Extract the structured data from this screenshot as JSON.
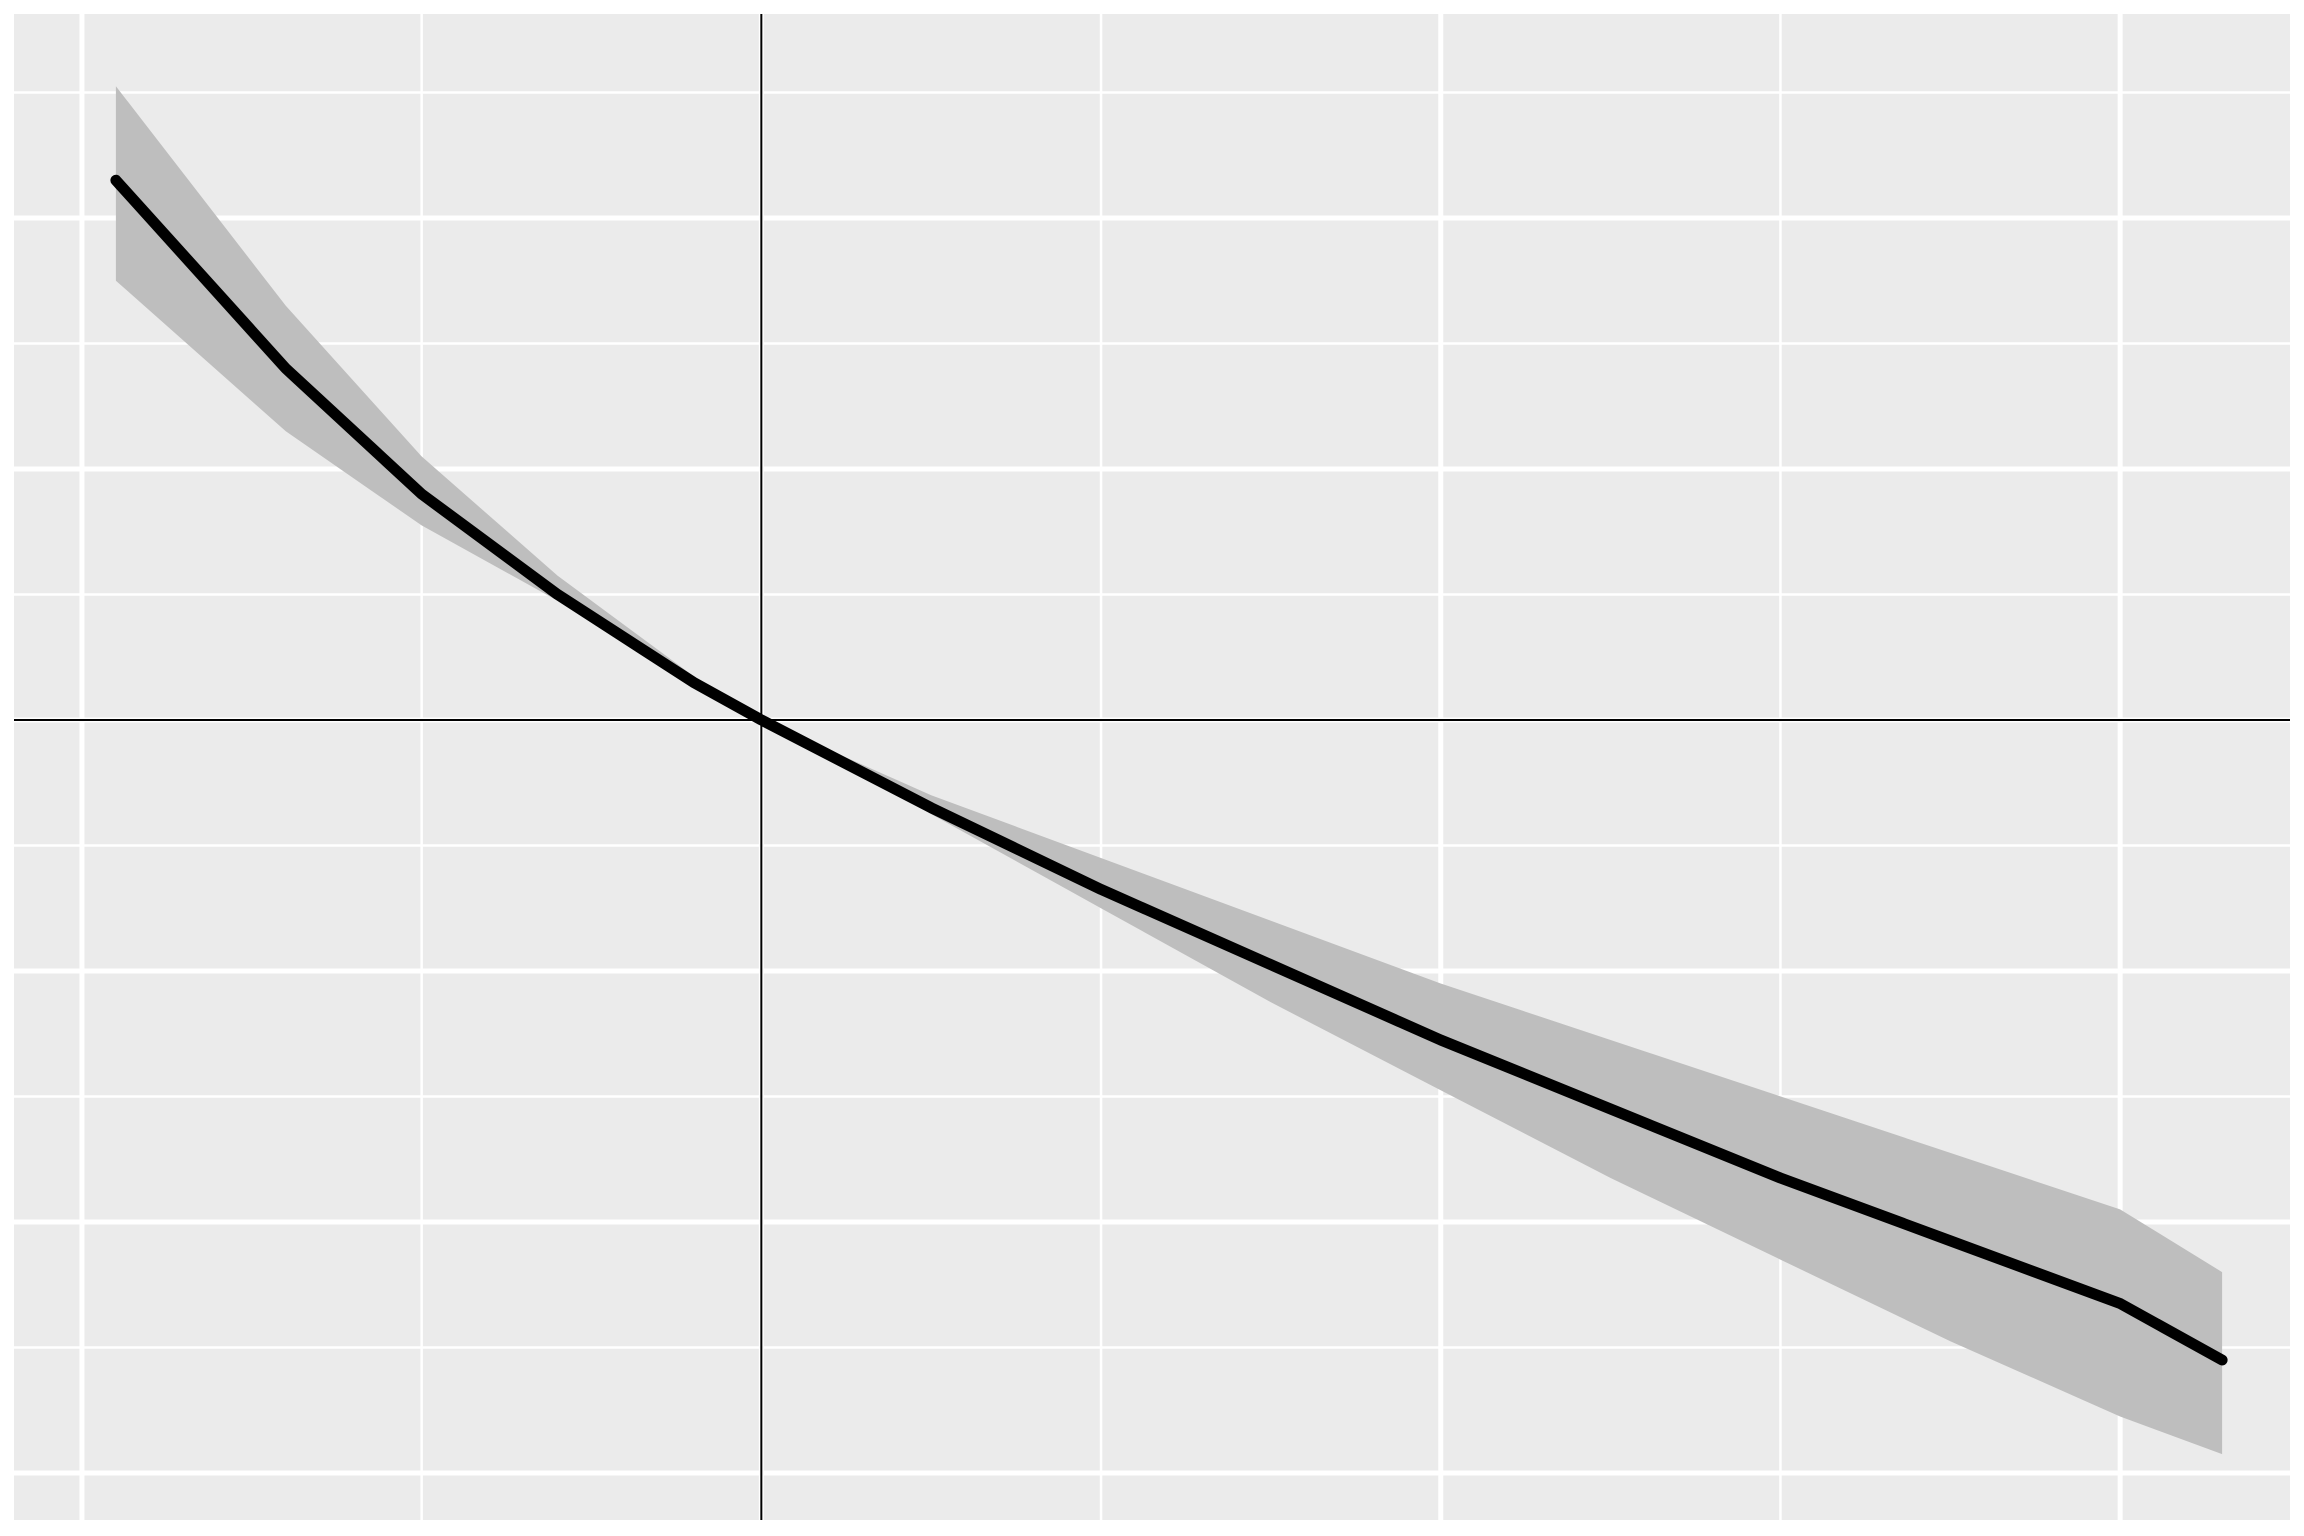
{
  "chart_data": {
    "type": "line",
    "title": "",
    "xlabel": "",
    "ylabel": "",
    "xlim": [
      -1.1,
      2.25
    ],
    "ylim": [
      -1.275,
      1.125
    ],
    "x_major_breaks": [
      -1,
      0,
      1,
      2
    ],
    "x_minor_breaks": [
      -0.5,
      0.5,
      1.5
    ],
    "y_major_breaks": [
      -1.2,
      -0.8,
      -0.4,
      0,
      0.4,
      0.8
    ],
    "y_minor_breaks": [
      -1.0,
      -0.6,
      -0.2,
      0.2,
      0.6,
      1.0
    ],
    "reference_lines": {
      "x": 0,
      "y": 0
    },
    "grid": true,
    "background": "#ebebeb",
    "gridline_color": "#ffffff",
    "series": [
      {
        "x": [
          -0.95,
          -0.7,
          -0.5,
          -0.3,
          -0.1,
          0,
          0.25,
          0.5,
          0.75,
          1.0,
          1.25,
          1.5,
          1.75,
          2.0,
          2.15
        ],
        "y": [
          0.86,
          0.56,
          0.36,
          0.2,
          0.06,
          0,
          -0.14,
          -0.27,
          -0.39,
          -0.51,
          -0.62,
          -0.73,
          -0.83,
          -0.93,
          -1.02
        ],
        "ci_lower": [
          0.7,
          0.46,
          0.31,
          0.19,
          0.06,
          0,
          -0.15,
          -0.3,
          -0.45,
          -0.59,
          -0.73,
          -0.86,
          -0.99,
          -1.11,
          -1.17
        ],
        "ci_upper": [
          1.01,
          0.66,
          0.42,
          0.23,
          0.07,
          0,
          -0.12,
          -0.22,
          -0.32,
          -0.42,
          -0.51,
          -0.6,
          -0.69,
          -0.78,
          -0.88
        ],
        "line_color": "#000000",
        "ribbon_color": "#bebebe"
      }
    ]
  }
}
